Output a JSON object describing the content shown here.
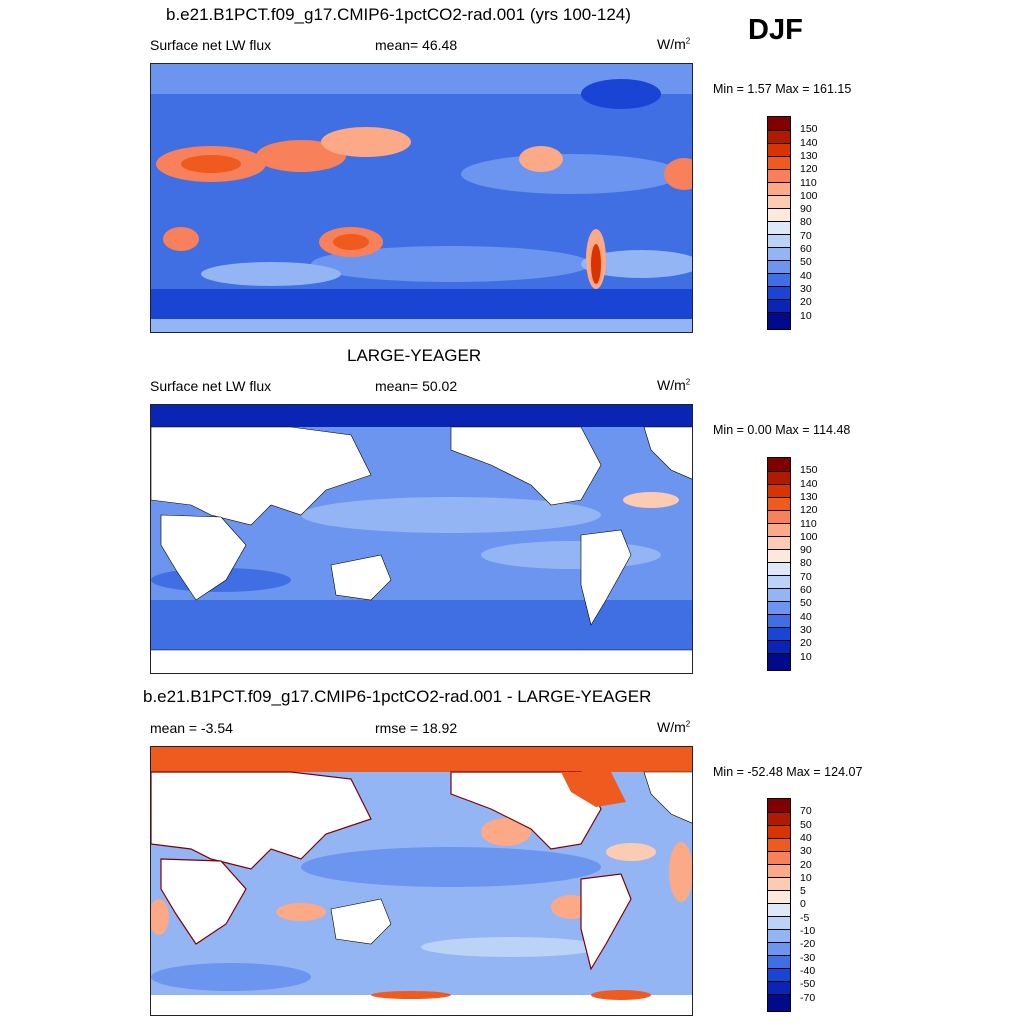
{
  "season": "DJF",
  "panels": [
    {
      "title": "b.e21.B1PCT.f09_g17.CMIP6-1pctCO2-rad.001 (yrs 100-124)",
      "left_label": "Surface net LW flux",
      "center_label": "mean=  46.48",
      "units_base": "W/m",
      "units_exp": "2",
      "minmax": "Min =   1.57 Max = 161.15",
      "colorbar_labels": [
        "150",
        "140",
        "130",
        "120",
        "110",
        "100",
        "90",
        "80",
        "70",
        "60",
        "50",
        "40",
        "30",
        "20",
        "10"
      ]
    },
    {
      "title": "LARGE-YEAGER",
      "left_label": "Surface net LW flux",
      "center_label": "mean=  50.02",
      "units_base": "W/m",
      "units_exp": "2",
      "minmax": "Min =   0.00 Max = 114.48",
      "colorbar_labels": [
        "150",
        "140",
        "130",
        "120",
        "110",
        "100",
        "90",
        "80",
        "70",
        "60",
        "50",
        "40",
        "30",
        "20",
        "10"
      ]
    },
    {
      "title": "b.e21.B1PCT.f09_g17.CMIP6-1pctCO2-rad.001 - LARGE-YEAGER",
      "left_label": "mean =  -3.54",
      "center_label": "rmse =  18.92",
      "units_base": "W/m",
      "units_exp": "2",
      "minmax": "Min = -52.48 Max = 124.07",
      "colorbar_labels": [
        "70",
        "50",
        "40",
        "30",
        "20",
        "10",
        "5",
        "0",
        "-5",
        "-10",
        "-20",
        "-30",
        "-40",
        "-50",
        "-70"
      ]
    }
  ],
  "colors": {
    "abs_scale": [
      "#7f0000",
      "#b01a00",
      "#d93400",
      "#ef5a1e",
      "#f8805a",
      "#fba987",
      "#fccbb3",
      "#fde9dc",
      "#dde9fb",
      "#bcd3f8",
      "#93b5f3",
      "#6b95ee",
      "#3f6fe3",
      "#1a45d4",
      "#0a24b4",
      "#000a8a"
    ],
    "diff_scale": [
      "#7f0000",
      "#b01a00",
      "#d93400",
      "#ef5a1e",
      "#f8805a",
      "#fba987",
      "#fccbb3",
      "#fde9dc",
      "#dde9fb",
      "#bcd3f8",
      "#93b5f3",
      "#6b95ee",
      "#3f6fe3",
      "#1a45d4",
      "#0a24b4",
      "#000a8a"
    ],
    "land": "#ffffff",
    "coastline": "#000000"
  }
}
